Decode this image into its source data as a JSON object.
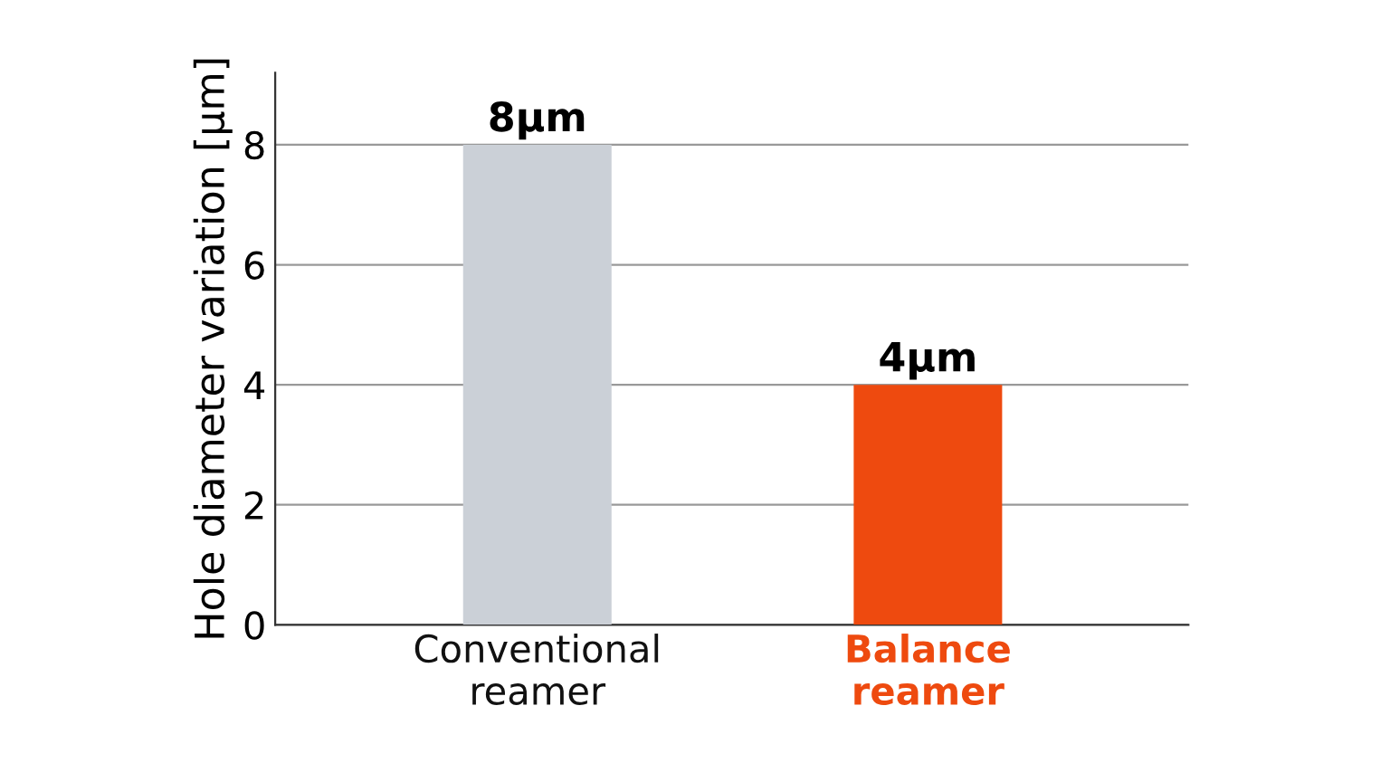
{
  "chart_data": {
    "type": "bar",
    "ylabel": "Hole diameter variation [μm]",
    "categories": [
      "Conventional\nreamer",
      "Balance\nreamer"
    ],
    "values": [
      8,
      4
    ],
    "colors": [
      "#cbd0d7",
      "#ee4a0f"
    ],
    "value_labels": [
      "8μm",
      "4μm"
    ],
    "ylim": [
      0,
      9.2
    ],
    "yticks": [
      0,
      2,
      4,
      6,
      8
    ],
    "grid": "y"
  }
}
